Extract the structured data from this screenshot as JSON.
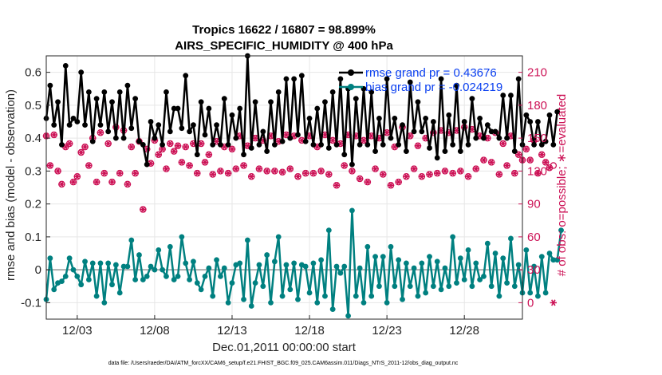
{
  "chart_data": {
    "type": "line",
    "title_line1": "Tropics 16622 / 16807 = 98.899%",
    "title_line2": "AIRS_SPECIFIC_HUMIDITY @ 400 hPa",
    "xlabel": "Dec.01,2011 00:00:00 start",
    "ylabel_left": "rmse and bias (model - observation)",
    "ylabel_right": "# of obs: o=possible; ∗=evaluated",
    "x_range": [
      1.0,
      31.75
    ],
    "ylim_left": [
      -0.15,
      0.65
    ],
    "ylim_right": [
      -15,
      225
    ],
    "x_ticks": [
      {
        "value": 3,
        "label": "12/03"
      },
      {
        "value": 8,
        "label": "12/08"
      },
      {
        "value": 13,
        "label": "12/13"
      },
      {
        "value": 18,
        "label": "12/18"
      },
      {
        "value": 23,
        "label": "12/23"
      },
      {
        "value": 28,
        "label": "12/28"
      }
    ],
    "y_ticks_left": [
      {
        "value": 0.6,
        "label": "0.6"
      },
      {
        "value": 0.5,
        "label": "0.5"
      },
      {
        "value": 0.4,
        "label": "0.4"
      },
      {
        "value": 0.3,
        "label": "0.3"
      },
      {
        "value": 0.2,
        "label": "0.2"
      },
      {
        "value": 0.1,
        "label": "0.1"
      },
      {
        "value": 0,
        "label": "0"
      },
      {
        "value": -0.1,
        "label": "-0.1"
      }
    ],
    "y_ticks_right": [
      {
        "value": 210,
        "label": "210"
      },
      {
        "value": 180,
        "label": "180"
      },
      {
        "value": 150,
        "label": "150"
      },
      {
        "value": 120,
        "label": "120"
      },
      {
        "value": 90,
        "label": "90"
      },
      {
        "value": 60,
        "label": "60"
      },
      {
        "value": 30,
        "label": "30"
      },
      {
        "value": 0,
        "label": "0"
      }
    ],
    "legend": [
      {
        "label": "rmse grand pr = 0.43676",
        "color": "#000000"
      },
      {
        "label": "bias grand pr = -0.024219",
        "color": "#008080"
      }
    ],
    "colors": {
      "rmse": "#000000",
      "bias": "#008080",
      "obs": "#cc1155",
      "legend_text": "#0a3ff0",
      "zero_line": "#b0b0b0",
      "grid": "#e6e6e6"
    },
    "x_start": 1.0,
    "x_step": 0.25,
    "series": [
      {
        "name": "rmse",
        "axis": "left",
        "values": [
          0.46,
          0.56,
          0.44,
          0.51,
          0.38,
          0.62,
          0.44,
          0.46,
          0.45,
          0.6,
          0.44,
          0.54,
          0.39,
          0.52,
          0.44,
          0.54,
          0.42,
          0.51,
          0.4,
          0.54,
          0.4,
          0.56,
          0.43,
          0.52,
          0.39,
          0.38,
          0.32,
          0.45,
          0.4,
          0.44,
          0.38,
          0.54,
          0.42,
          0.49,
          0.49,
          0.43,
          0.59,
          0.42,
          0.44,
          0.35,
          0.51,
          0.41,
          0.49,
          0.38,
          0.44,
          0.38,
          0.52,
          0.38,
          0.47,
          0.4,
          0.49,
          0.35,
          0.65,
          0.37,
          0.51,
          0.38,
          0.42,
          0.36,
          0.51,
          0.38,
          0.54,
          0.39,
          0.58,
          0.4,
          0.58,
          0.41,
          0.59,
          0.39,
          0.46,
          0.38,
          0.49,
          0.38,
          0.51,
          0.37,
          0.54,
          0.38,
          0.58,
          0.35,
          0.55,
          0.32,
          0.52,
          0.38,
          0.55,
          0.38,
          0.54,
          0.36,
          0.46,
          0.38,
          0.58,
          0.4,
          0.46,
          0.38,
          0.44,
          0.36,
          0.57,
          0.42,
          0.51,
          0.42,
          0.46,
          0.37,
          0.45,
          0.34,
          0.58,
          0.36,
          0.47,
          0.38,
          0.56,
          0.36,
          0.45,
          0.38,
          0.52,
          0.4,
          0.46,
          0.4,
          0.44,
          0.42,
          0.42,
          0.4,
          0.53,
          0.4,
          0.53,
          0.36,
          0.58,
          0.38,
          0.47,
          0.45,
          0.38,
          0.45,
          0.38,
          0.39,
          0.47,
          0.38,
          0.48
        ]
      },
      {
        "name": "bias",
        "axis": "left",
        "values": [
          -0.09,
          0.035,
          -0.06,
          -0.04,
          -0.035,
          -0.02,
          0.035,
          0.0,
          -0.02,
          -0.045,
          0.025,
          -0.03,
          0.02,
          -0.08,
          0.02,
          -0.1,
          0.02,
          -0.045,
          0.015,
          -0.07,
          0.01,
          0.01,
          0.09,
          -0.03,
          0.045,
          -0.03,
          -0.02,
          0.01,
          0.0,
          0.06,
          0.0,
          -0.02,
          0.07,
          -0.03,
          -0.02,
          0.1,
          0.02,
          -0.03,
          0.025,
          -0.04,
          -0.06,
          -0.02,
          0.005,
          -0.08,
          0.03,
          -0.02,
          0.005,
          -0.1,
          -0.04,
          0.015,
          0.02,
          -0.09,
          0.09,
          -0.11,
          -0.04,
          0.015,
          -0.05,
          0.045,
          -0.1,
          0.025,
          0.1,
          -0.08,
          0.015,
          -0.06,
          0.02,
          -0.09,
          0.015,
          0.01,
          -0.07,
          0.02,
          -0.1,
          0.03,
          -0.08,
          0.12,
          -0.12,
          0.01,
          -0.01,
          0.01,
          -0.14,
          0.18,
          -0.08,
          0.005,
          -0.1,
          0.07,
          -0.08,
          0.04,
          -0.05,
          0.04,
          -0.1,
          0.07,
          -0.05,
          0.03,
          -0.09,
          0.02,
          -0.05,
          0.005,
          -0.08,
          0.02,
          -0.07,
          0.04,
          -0.05,
          0.025,
          -0.06,
          0.005,
          -0.05,
          0.1,
          -0.04,
          0.035,
          -0.03,
          0.06,
          -0.05,
          0.02,
          -0.03,
          -0.02,
          0.08,
          -0.05,
          0.05,
          -0.08,
          0.035,
          -0.04,
          0.095,
          -0.05,
          0.015,
          -0.07,
          0.06,
          -0.07,
          0.01,
          -0.08,
          0.04,
          -0.07,
          0.05,
          0.03,
          0.03,
          0.12
        ]
      },
      {
        "name": "obs_possible",
        "axis": "right",
        "marker": "o",
        "values": [
          152,
          125,
          153,
          120,
          108,
          142,
          145,
          110,
          115,
          137,
          142,
          125,
          150,
          110,
          155,
          118,
          145,
          110,
          160,
          118,
          157,
          108,
          142,
          118,
          147,
          85,
          140,
          127,
          148,
          135,
          140,
          122,
          145,
          138,
          143,
          128,
          142,
          125,
          145,
          118,
          145,
          128,
          135,
          117,
          147,
          120,
          142,
          118,
          140,
          122,
          152,
          125,
          143,
          115,
          150,
          122,
          148,
          120,
          152,
          120,
          147,
          119,
          153,
          122,
          152,
          115,
          148,
          118,
          152,
          118,
          142,
          120,
          153,
          117,
          148,
          107,
          145,
          125,
          153,
          120,
          152,
          113,
          148,
          110,
          152,
          122,
          150,
          117,
          155,
          107,
          142,
          110,
          160,
          115,
          152,
          122,
          143,
          115,
          150,
          117,
          155,
          118,
          157,
          120,
          155,
          118,
          157,
          120,
          160,
          115,
          158,
          122,
          152,
          130,
          150,
          128,
          155,
          117,
          145,
          125,
          152,
          118,
          135,
          130,
          140,
          130,
          148,
          118,
          135,
          128,
          123,
          125
        ]
      },
      {
        "name": "obs_evaluated",
        "axis": "right",
        "marker": "*",
        "values": [
          152,
          125,
          153,
          120,
          108,
          142,
          145,
          110,
          115,
          137,
          142,
          125,
          150,
          110,
          155,
          118,
          145,
          110,
          160,
          118,
          157,
          108,
          142,
          118,
          147,
          85,
          140,
          127,
          148,
          135,
          140,
          122,
          145,
          138,
          143,
          128,
          142,
          125,
          145,
          118,
          145,
          128,
          135,
          117,
          147,
          120,
          142,
          118,
          140,
          122,
          152,
          125,
          143,
          115,
          150,
          122,
          148,
          120,
          152,
          120,
          147,
          119,
          153,
          122,
          152,
          115,
          148,
          118,
          152,
          118,
          142,
          120,
          153,
          117,
          148,
          107,
          145,
          125,
          153,
          120,
          152,
          113,
          148,
          110,
          152,
          122,
          150,
          117,
          155,
          107,
          142,
          110,
          160,
          115,
          152,
          122,
          143,
          115,
          150,
          117,
          155,
          118,
          157,
          120,
          155,
          118,
          157,
          120,
          160,
          115,
          158,
          122,
          152,
          130,
          150,
          128,
          155,
          117,
          145,
          125,
          152,
          118,
          135,
          130,
          140,
          130,
          148,
          118,
          135,
          128,
          123,
          0
        ]
      }
    ]
  },
  "footer": "data file: /Users/raeder/DAI/ATM_forcXX/CAM6_setup/f.e21.FHIST_BGC.f09_025.CAM6assim.011/Diags_NTrS_2011-12/obs_diag_output.nc"
}
